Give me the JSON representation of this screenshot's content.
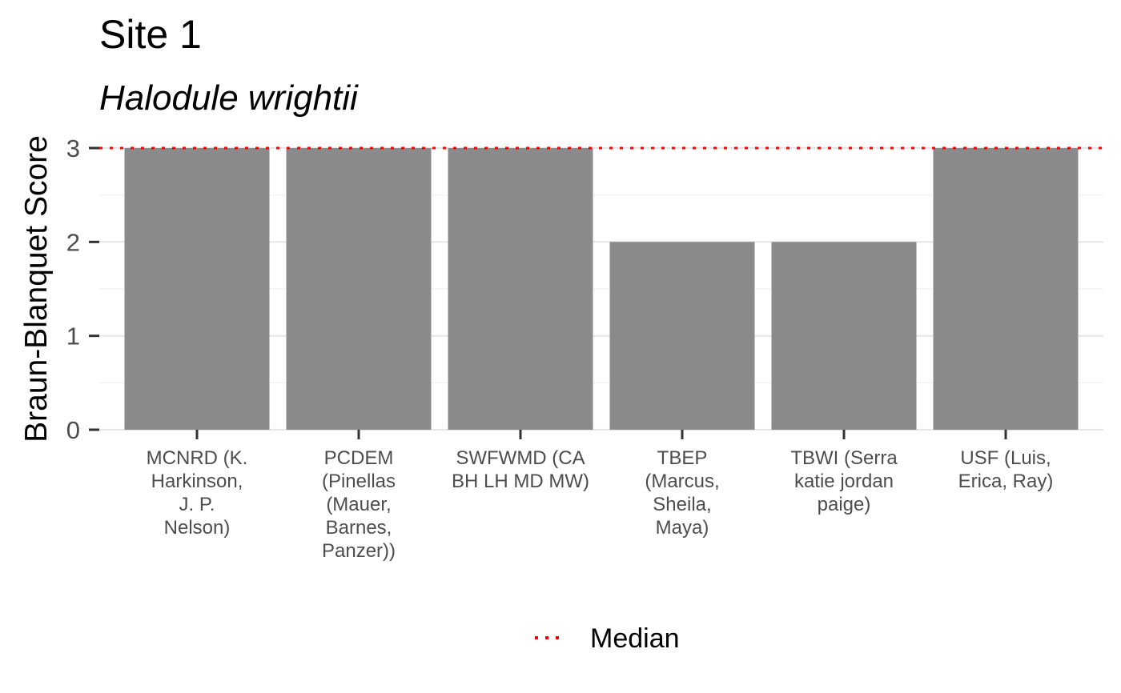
{
  "chart_data": {
    "type": "bar",
    "title": "Site 1",
    "subtitle": "Halodule wrightii",
    "xlabel": "",
    "ylabel": "Braun-Blanquet Score",
    "ylim": [
      0,
      3
    ],
    "yticks": [
      "0",
      "1",
      "2",
      "3"
    ],
    "categories": [
      [
        "MCNRD (K.",
        "Harkinson,",
        "J. P.",
        "Nelson)"
      ],
      [
        "PCDEM",
        "(Pinellas",
        "(Mauer,",
        "Barnes,",
        "Panzer))"
      ],
      [
        "SWFWMD (CA",
        "BH LH MD MW)"
      ],
      [
        "TBEP",
        "(Marcus,",
        "Sheila,",
        "Maya)"
      ],
      [
        "TBWI (Serra",
        "katie jordan",
        "paige)"
      ],
      [
        "USF (Luis,",
        "Erica, Ray)"
      ]
    ],
    "values": [
      3,
      3,
      3,
      2,
      2,
      3
    ],
    "reference_line": {
      "label": "Median",
      "value": 3,
      "style": "dotted",
      "color": "#ff0000"
    },
    "bar_color": "#8a8a8a",
    "grid": true,
    "legend": {
      "position": "bottom",
      "entries": [
        "Median"
      ]
    }
  }
}
